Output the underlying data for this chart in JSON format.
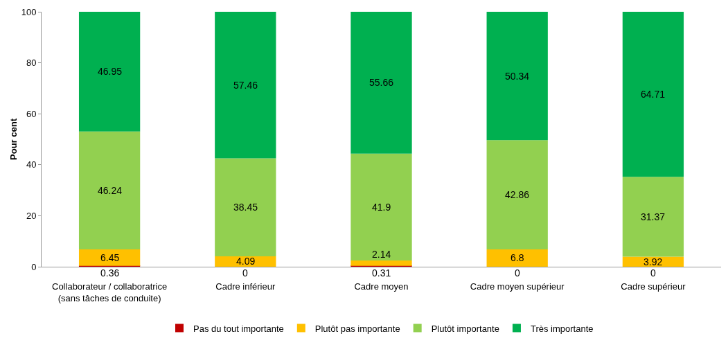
{
  "chart_data": {
    "type": "bar",
    "stacked": true,
    "ylabel": "Pour cent",
    "categories": [
      "Collaborateur / collaboratrice\n(sans tâches de conduite)",
      "Cadre inférieur",
      "Cadre moyen",
      "Cadre moyen supérieur",
      "Cadre supérieur"
    ],
    "series": [
      {
        "name": "Pas du tout importante",
        "color": "#c00000",
        "values": [
          0.36,
          0,
          0.31,
          0,
          0
        ]
      },
      {
        "name": "Plutôt pas importante",
        "color": "#ffc000",
        "values": [
          6.45,
          4.09,
          2.14,
          6.8,
          3.92
        ]
      },
      {
        "name": "Plutôt importante",
        "color": "#92d050",
        "values": [
          46.24,
          38.45,
          41.9,
          42.86,
          31.37
        ]
      },
      {
        "name": "Très importante",
        "color": "#00b050",
        "values": [
          46.95,
          57.46,
          55.66,
          50.34,
          64.71
        ]
      }
    ],
    "ylim": [
      0,
      100
    ],
    "yticks": [
      0,
      20,
      40,
      60,
      80,
      100
    ],
    "grid": false,
    "legend": "bottom",
    "data_labels": true
  }
}
